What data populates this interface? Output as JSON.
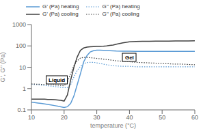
{
  "chart_data": {
    "type": "line",
    "xlabel": "temperature (°C)",
    "ylabel": "G’, G’’ (Pa)",
    "x": [
      10,
      11,
      12,
      13,
      14,
      15,
      16,
      17,
      18,
      19,
      20,
      21,
      22,
      23,
      24,
      25,
      26,
      27,
      28,
      29,
      30,
      31,
      32,
      33,
      34,
      35,
      36,
      38,
      40,
      42,
      44,
      46,
      48,
      50,
      52,
      54,
      56,
      58,
      60
    ],
    "series": [
      {
        "name": "G’ (Pa) heating",
        "color": "#5b9bd5",
        "line_style": "solid",
        "values": [
          0.23,
          0.22,
          0.21,
          0.2,
          0.19,
          0.18,
          0.17,
          0.16,
          0.15,
          0.14,
          0.13,
          0.14,
          0.2,
          0.45,
          1.5,
          5,
          18,
          35,
          52,
          60,
          63,
          63,
          62,
          61,
          60,
          59,
          58,
          57,
          56,
          55,
          55,
          55,
          55,
          55,
          55,
          55,
          55,
          55,
          55
        ]
      },
      {
        "name": "G’’ (Pa) heating",
        "color": "#5b9bd5",
        "line_style": "dotted",
        "values": [
          1.6,
          1.55,
          1.5,
          1.45,
          1.4,
          1.35,
          1.3,
          1.25,
          1.2,
          1.15,
          1.1,
          1.1,
          1.5,
          3.5,
          7,
          11,
          15,
          16.5,
          17,
          17,
          16,
          15,
          14,
          13,
          12.5,
          12,
          11.5,
          11,
          11,
          10.5,
          10.5,
          10.5,
          10.5,
          10.5,
          10.5,
          10.5,
          10.5,
          10.5,
          10.5
        ]
      },
      {
        "name": "G’ (Pa) cooling",
        "color": "#404040",
        "line_style": "solid",
        "values": [
          0.32,
          0.32,
          0.32,
          0.32,
          0.32,
          0.31,
          0.31,
          0.3,
          0.29,
          0.28,
          0.26,
          0.5,
          2.5,
          10,
          30,
          62,
          80,
          88,
          92,
          93,
          94,
          95,
          97,
          100,
          105,
          110,
          120,
          140,
          155,
          160,
          163,
          165,
          167,
          168,
          169,
          170,
          171,
          172,
          173
        ]
      },
      {
        "name": "G’’ (Pa) cooling",
        "color": "#404040",
        "line_style": "dotted",
        "values": [
          1.65,
          1.62,
          1.6,
          1.58,
          1.55,
          1.52,
          1.5,
          1.47,
          1.45,
          1.4,
          1.35,
          2.0,
          5,
          12,
          20,
          27,
          29,
          29,
          28,
          27,
          26,
          25,
          24,
          23,
          22,
          21,
          20,
          19,
          18,
          17,
          16.5,
          16,
          15.5,
          15,
          14.5,
          14,
          14,
          13.5,
          13
        ]
      }
    ],
    "xlim": [
      10,
      60
    ],
    "xticks": [
      10,
      20,
      30,
      40,
      50,
      60
    ],
    "ylim": [
      0.1,
      1000
    ],
    "yticks": [
      0.1,
      1,
      10,
      100,
      1000
    ],
    "log": "y",
    "grid": false,
    "legend": "top",
    "annotations": [
      "Liquid",
      "Gel"
    ]
  }
}
